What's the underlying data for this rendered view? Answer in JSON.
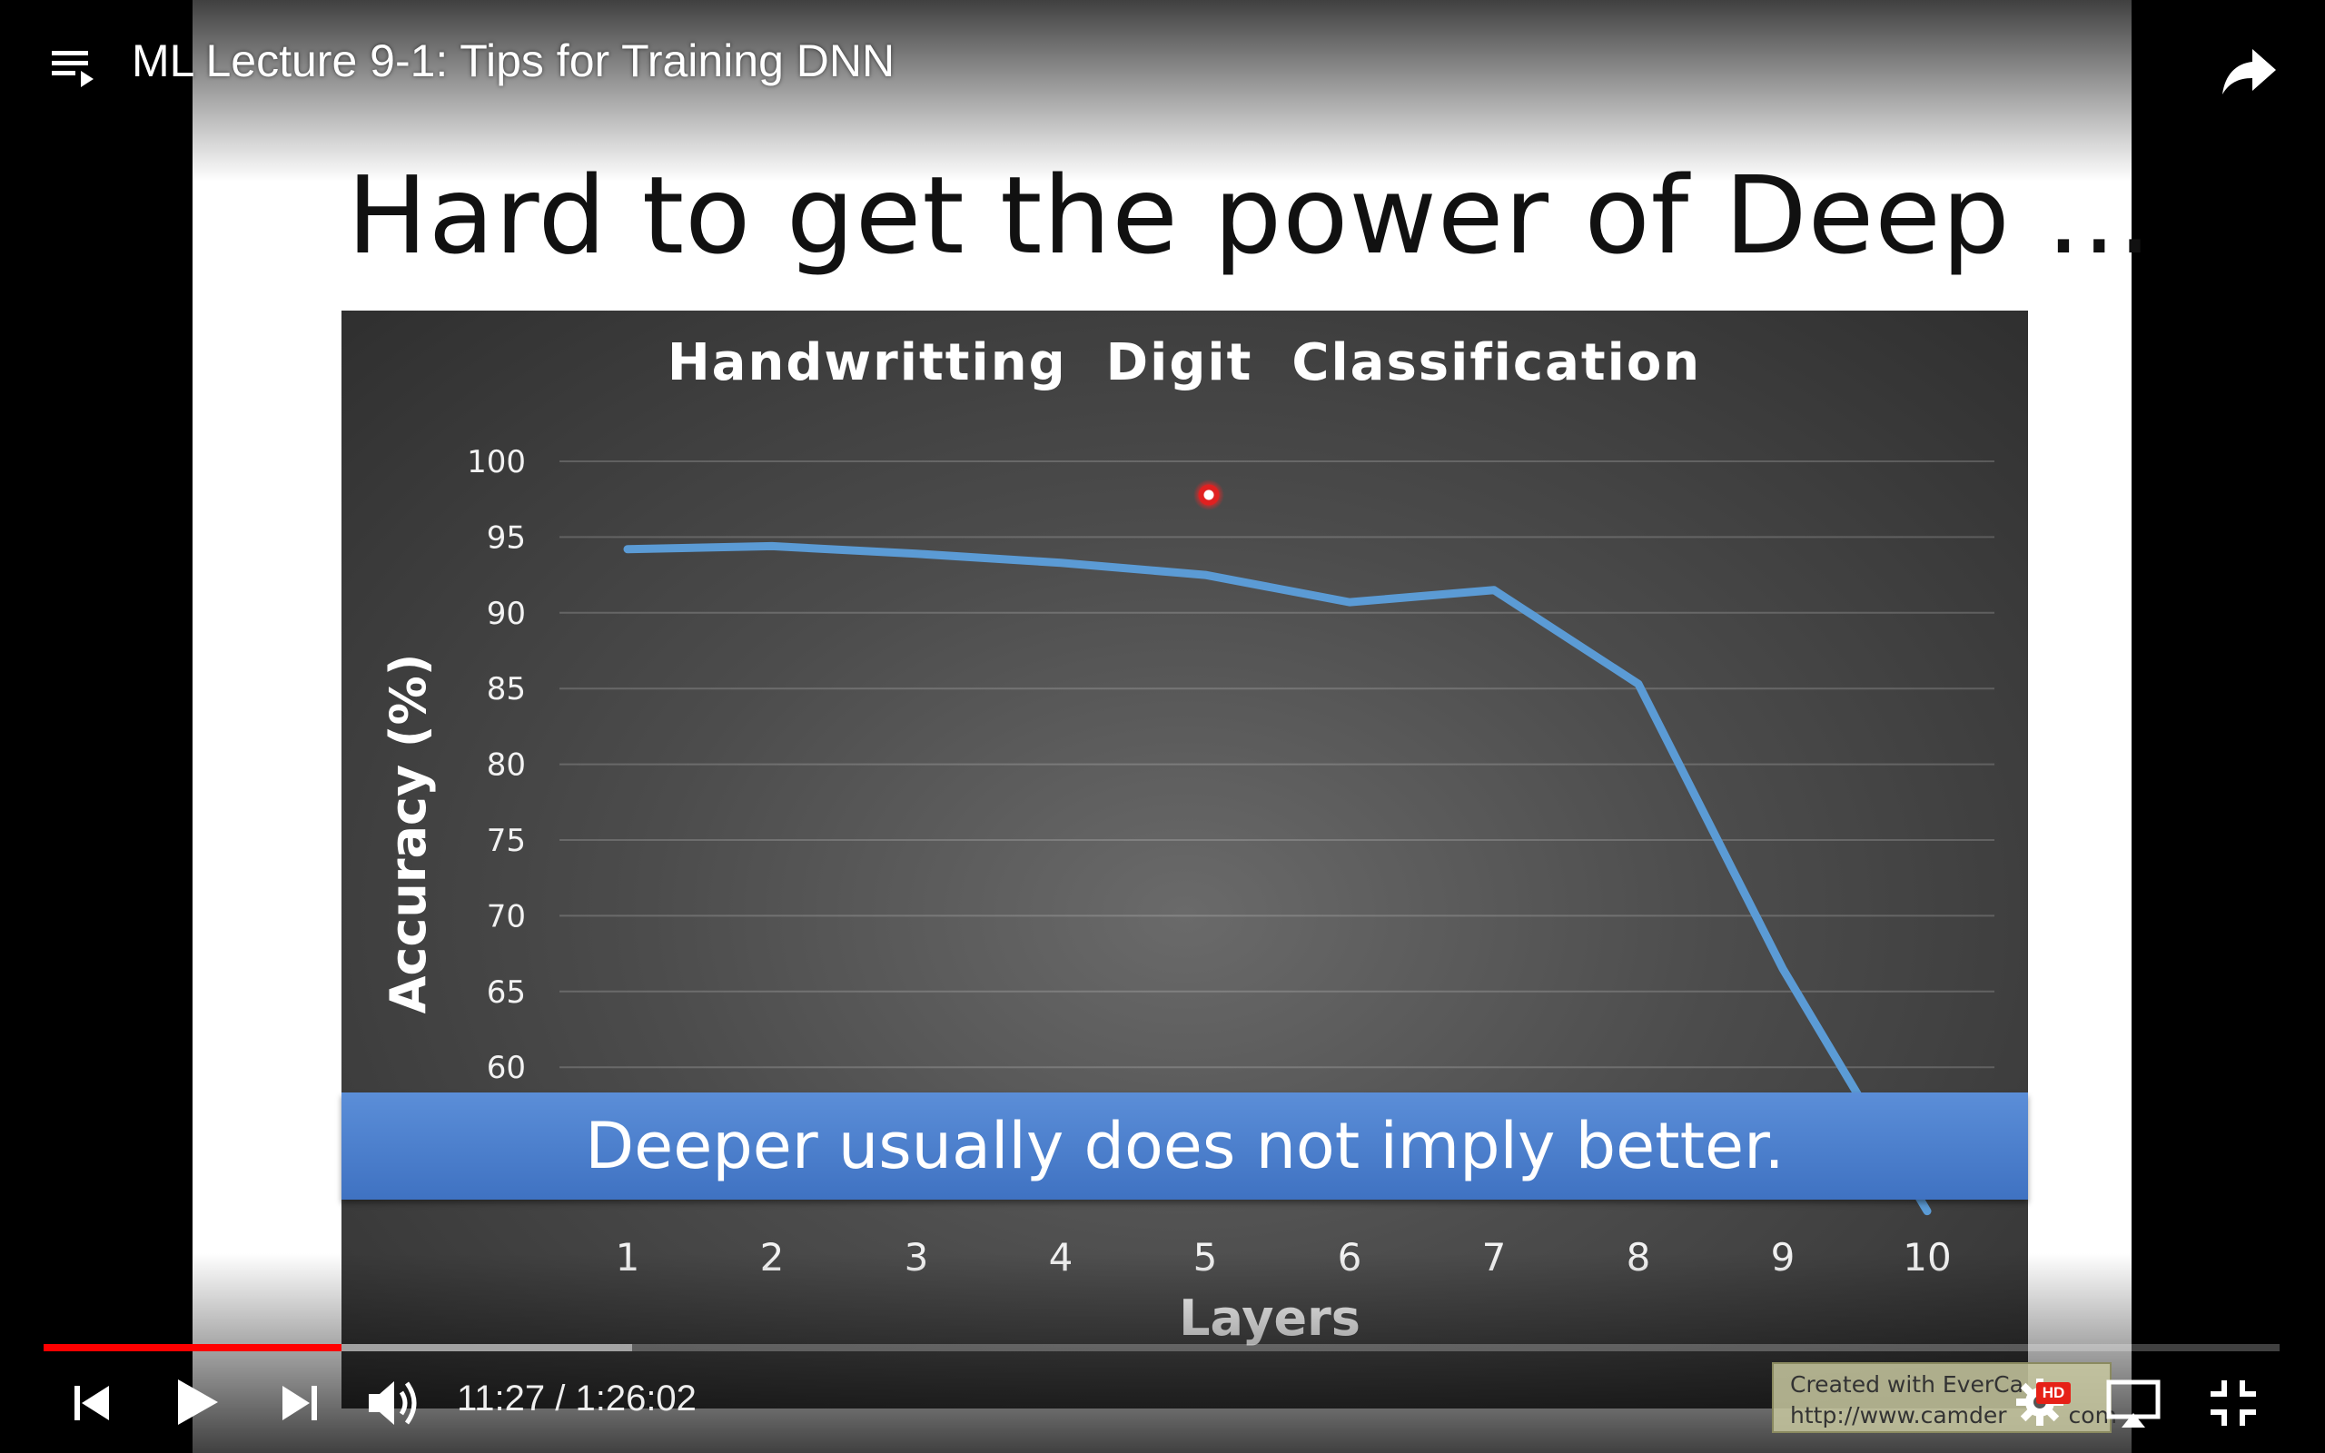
{
  "player": {
    "video_title": "ML Lecture 9-1: Tips for Training DNN",
    "current_time": "11:27",
    "duration": "1:26:02",
    "time_display": "11:27 / 1:26:02",
    "progress_fraction": 0.1331,
    "loaded_fraction": 0.263,
    "hd_badge": "HD",
    "icons": {
      "playlist": "playlist-icon",
      "share": "share-icon",
      "previous": "previous-icon",
      "play": "play-icon",
      "next": "next-icon",
      "volume": "volume-icon",
      "settings": "gear-icon",
      "miniplayer": "miniplayer-icon",
      "exit_fullscreen": "exit-fullscreen-icon"
    },
    "colors": {
      "progress": "#ff0000"
    }
  },
  "slide": {
    "title": "Hard to get the power of Deep …",
    "banner": "Deeper usually does not imply better.",
    "watermark_line1": "Created with EverCa",
    "watermark_line2": "http://www.camder",
    "watermark_line2_end": "com"
  },
  "chart_data": {
    "type": "line",
    "title": "Handwritting  Digit  Classification",
    "xlabel": "Layers",
    "ylabel": "Accuracy (%)",
    "x": [
      1,
      2,
      3,
      4,
      5,
      6,
      7,
      8,
      9,
      10
    ],
    "series": [
      {
        "values": [
          94.2,
          94.4,
          93.9,
          93.3,
          92.5,
          90.7,
          91.5,
          85.3,
          66.5,
          50.5
        ],
        "color": "#5b9bd5"
      }
    ],
    "y_ticks": [
      60,
      65,
      70,
      75,
      80,
      85,
      90,
      95,
      100
    ],
    "ylim": [
      50,
      100
    ],
    "grid": true
  }
}
